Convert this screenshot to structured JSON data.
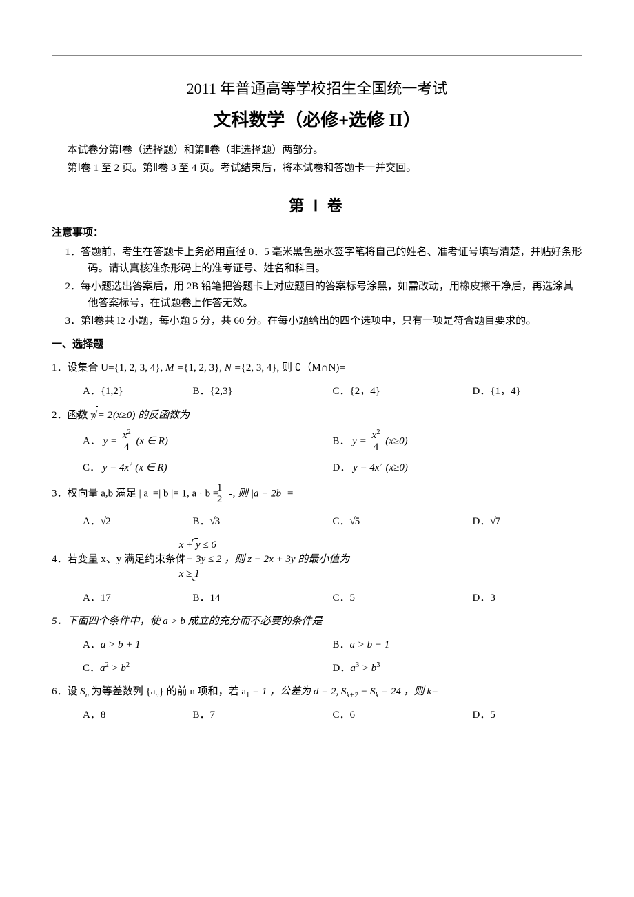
{
  "title1": "2011 年普通高等学校招生全国统一考试",
  "title2": "文科数学（必修+选修 II）",
  "intro1": "本试卷分第Ⅰ卷（选择题）和第Ⅱ卷（非选择题）两部分。",
  "intro2": "第Ⅰ卷 1 至 2 页。第Ⅱ卷 3 至 4 页。考试结束后，将本试卷和答题卡一并交回。",
  "vol_title": "第 Ⅰ 卷",
  "notice_head": "注意事项：",
  "notice1": "1．答题前，考生在答题卡上务必用直径 0．5 毫米黑色墨水签字笔将自己的姓名、准考证号填写清楚，并贴好条形码。请认真核准条形码上的准考证号、姓名和科目。",
  "notice2": "2．每小题选出答案后，用 2B 铅笔把答题卡上对应题目的答案标号涂黑，如需改动，用橡皮擦干净后，再选涂其他答案标号，在试题卷上作答无效。",
  "notice3": "3．第Ⅰ卷共 l2 小题，每小题 5 分，共 60 分。在每小题给出的四个选项中，只有一项是符合题目要求的。",
  "section_head": "一、选择题",
  "q1": {
    "prefix": "1．设集合 U=",
    "set_u": "{1, 2, 3, 4}",
    "mid1": ", M =",
    "set_m": "{1, 2, 3}",
    "mid2": ",  N =",
    "set_n": "{2, 3, 4}",
    "tail": ", 则 ∁（M∩N)=",
    "A": "A．{1,2}",
    "B": "B．{2,3}",
    "C": "C．{2，4}",
    "D": "D．{1，4}"
  },
  "q2": {
    "prefix": "2．函数 ",
    "body": "y = 2",
    "rad": "x",
    "tail": "(x≥0) 的反函数为",
    "A_pre": "A．",
    "A_frac_num": "x",
    "A_frac_exp": "2",
    "A_frac_den": "4",
    "A_post": "(x ∈ R)",
    "B_pre": "B．",
    "B_frac_num": "x",
    "B_frac_exp": "2",
    "B_frac_den": "4",
    "B_post": "(x≥0)",
    "C": "C．",
    "C_body": "y = 4x",
    "C_exp": "2",
    "C_post": " (x ∈ R)",
    "D": "D．",
    "D_body": "y = 4x",
    "D_exp": "2",
    "D_post": "(x≥0)"
  },
  "q3": {
    "prefix": "3．权向量 a,b 满足 | a |=| b |= 1, a · b = −",
    "frac_num": "1",
    "frac_den": "2",
    "mid": ", 则 |a + 2b| =",
    "A": "A．",
    "A_rad": "2",
    "B": "B．",
    "B_rad": "3",
    "C": "C．",
    "C_rad": "5",
    "D": "D．",
    "D_rad": "7"
  },
  "q4": {
    "prefix": "4．若变量 x、y 满足约束条件 ",
    "c1": "x + y ≤ 6",
    "c2": "x − 3y ≤ 2",
    "c3": "x ≥ 1",
    "tail": "，则 z − 2x + 3y 的最小值为",
    "A": "A．17",
    "B": "B．14",
    "C": "C．5",
    "D": "D．3"
  },
  "q5": {
    "prefix": "5．下面四个条件中，使 a > b 成立的充分而不必要的条件是",
    "A": "A．",
    "A_body": "a > b + 1",
    "B": "B．",
    "B_body": "a > b − 1",
    "C": "C．",
    "C_body_l": "a",
    "C_exp": "2",
    "C_gt": " > b",
    "C_exp2": "2",
    "D": "D．",
    "D_body_l": "a",
    "D_exp": "3",
    "D_gt": " > b",
    "D_exp2": "3"
  },
  "q6": {
    "prefix": "6．设 ",
    "sn": "S",
    "sn_sub": "n",
    "mid1": " 为等差数列 {a",
    "an_sub": "n",
    "mid2": "} 的前 n 项和，若 a",
    "a1_sub": "1",
    "mid3": " = 1 ，公差为 d = 2, S",
    "sk2_sub": "k+2",
    "mid4": " − S",
    "sk_sub": "k",
    "mid5": " = 24 ，则 k=",
    "A": "A．8",
    "B": "B．7",
    "C": "C．6",
    "D": "D．5"
  }
}
